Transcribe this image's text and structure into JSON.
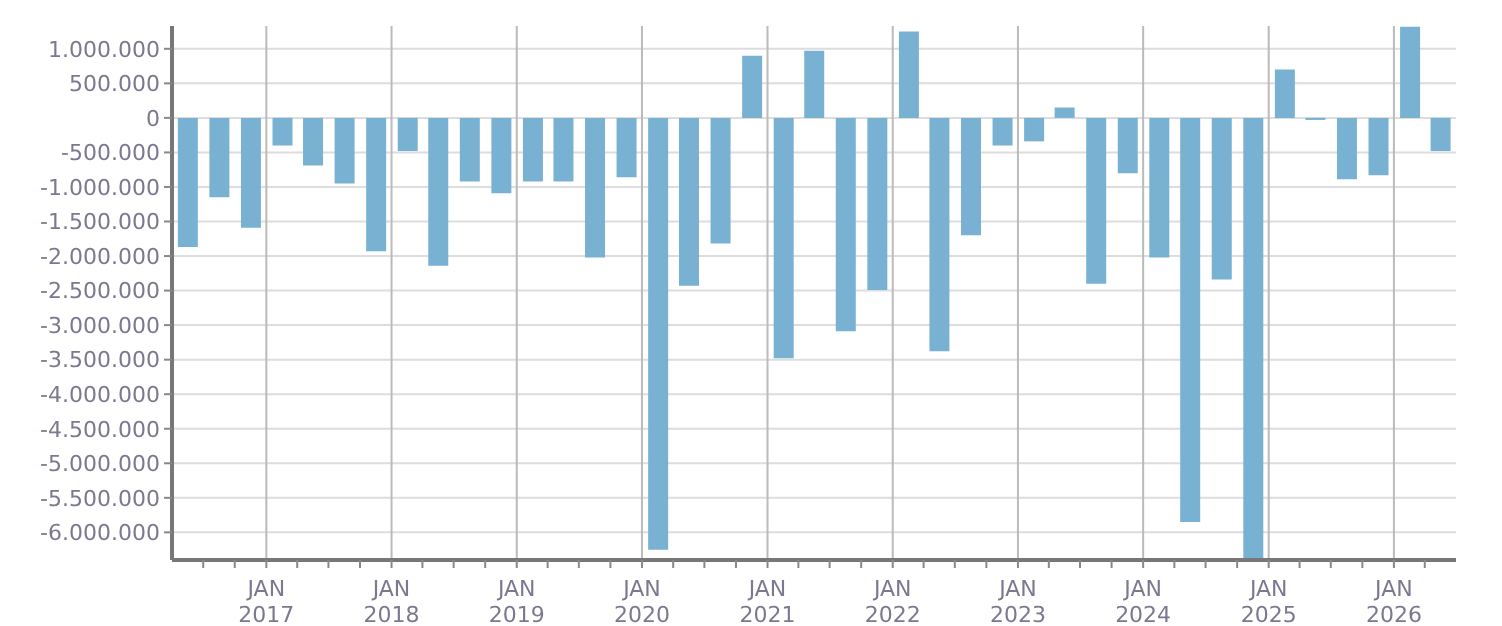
{
  "chart_data": {
    "type": "bar",
    "color": "#79b1d3",
    "grid": true,
    "x": [
      "2016-05-15",
      "2016-08-15",
      "2016-11-15",
      "2017-02-15",
      "2017-05-15",
      "2017-08-15",
      "2017-11-15",
      "2018-02-15",
      "2018-05-15",
      "2018-08-15",
      "2018-11-15",
      "2019-02-15",
      "2019-05-15",
      "2019-08-15",
      "2019-11-15",
      "2020-02-15",
      "2020-05-15",
      "2020-08-15",
      "2020-11-15",
      "2021-02-15",
      "2021-05-15",
      "2021-08-15",
      "2021-11-15",
      "2022-02-15",
      "2022-05-15",
      "2022-08-15",
      "2022-11-15",
      "2023-02-15",
      "2023-05-15",
      "2023-08-15",
      "2023-11-15",
      "2024-02-15",
      "2024-05-15",
      "2024-08-15",
      "2024-11-15",
      "2025-02-15",
      "2025-05-15",
      "2025-08-15",
      "2025-11-15",
      "2026-02-15",
      "2026-05-15"
    ],
    "values": [
      -1870000,
      -1150000,
      -1590000,
      -400000,
      -690000,
      -950000,
      -1930000,
      -480000,
      -2140000,
      -920000,
      -1090000,
      -920000,
      -920000,
      -2020000,
      -860000,
      -6250000,
      -2430000,
      -1820000,
      900000,
      -3480000,
      970000,
      -3090000,
      -2490000,
      1250000,
      -3380000,
      -1700000,
      -400000,
      -340000,
      150000,
      -2400000,
      -800000,
      -2020000,
      -5850000,
      -2340000,
      -6400000,
      700000,
      -30000,
      -890000,
      -830000,
      1320000,
      -480000
    ],
    "xlim": [
      "2016-04-01",
      "2026-07-01"
    ],
    "xticks": [
      {
        "value": "2016-07-01",
        "label": null
      },
      {
        "value": "2016-10-01",
        "label": null
      },
      {
        "value": "2017-01-01",
        "label": "JAN\n2017"
      },
      {
        "value": "2017-04-01",
        "label": null
      },
      {
        "value": "2017-07-01",
        "label": null
      },
      {
        "value": "2017-10-01",
        "label": null
      },
      {
        "value": "2018-01-01",
        "label": "JAN\n2018"
      },
      {
        "value": "2018-04-01",
        "label": null
      },
      {
        "value": "2018-07-01",
        "label": null
      },
      {
        "value": "2018-10-01",
        "label": null
      },
      {
        "value": "2019-01-01",
        "label": "JAN\n2019"
      },
      {
        "value": "2019-04-01",
        "label": null
      },
      {
        "value": "2019-07-01",
        "label": null
      },
      {
        "value": "2019-10-01",
        "label": null
      },
      {
        "value": "2020-01-01",
        "label": "JAN\n2020"
      },
      {
        "value": "2020-04-01",
        "label": null
      },
      {
        "value": "2020-07-01",
        "label": null
      },
      {
        "value": "2020-10-01",
        "label": null
      },
      {
        "value": "2021-01-01",
        "label": "JAN\n2021"
      },
      {
        "value": "2021-04-01",
        "label": null
      },
      {
        "value": "2021-07-01",
        "label": null
      },
      {
        "value": "2021-10-01",
        "label": null
      },
      {
        "value": "2022-01-01",
        "label": "JAN\n2022"
      },
      {
        "value": "2022-04-01",
        "label": null
      },
      {
        "value": "2022-07-01",
        "label": null
      },
      {
        "value": "2022-10-01",
        "label": null
      },
      {
        "value": "2023-01-01",
        "label": "JAN\n2023"
      },
      {
        "value": "2023-04-01",
        "label": null
      },
      {
        "value": "2023-07-01",
        "label": null
      },
      {
        "value": "2023-10-01",
        "label": null
      },
      {
        "value": "2024-01-01",
        "label": "JAN\n2024"
      },
      {
        "value": "2024-04-01",
        "label": null
      },
      {
        "value": "2024-07-01",
        "label": null
      },
      {
        "value": "2024-10-01",
        "label": null
      },
      {
        "value": "2025-01-01",
        "label": "JAN\n2025"
      },
      {
        "value": "2025-04-01",
        "label": null
      },
      {
        "value": "2025-07-01",
        "label": null
      },
      {
        "value": "2025-10-01",
        "label": null
      },
      {
        "value": "2026-01-01",
        "label": "JAN\n2026"
      },
      {
        "value": "2026-04-01",
        "label": null
      }
    ],
    "ylim": [
      -6400000,
      1330000
    ],
    "yticks": [
      {
        "value": 1000000,
        "label": "1.000.000"
      },
      {
        "value": 500000,
        "label": "500.000"
      },
      0,
      {
        "value": -500000,
        "label": "-500.000"
      },
      {
        "value": -1000000,
        "label": "-1.000.000"
      },
      {
        "value": -1500000,
        "label": "-1.500.000"
      },
      {
        "value": -2000000,
        "label": "-2.000.000"
      },
      {
        "value": -2500000,
        "label": "-2.500.000"
      },
      {
        "value": -3000000,
        "label": "-3.000.000"
      },
      {
        "value": -3500000,
        "label": "-3.500.000"
      },
      {
        "value": -4000000,
        "label": "-4.000.000"
      },
      {
        "value": -4500000,
        "label": "-4.500.000"
      },
      {
        "value": -5000000,
        "label": "-5.000.000"
      },
      {
        "value": -5500000,
        "label": "-5.500.000"
      },
      {
        "value": -6000000,
        "label": "-6.000.000"
      }
    ]
  }
}
